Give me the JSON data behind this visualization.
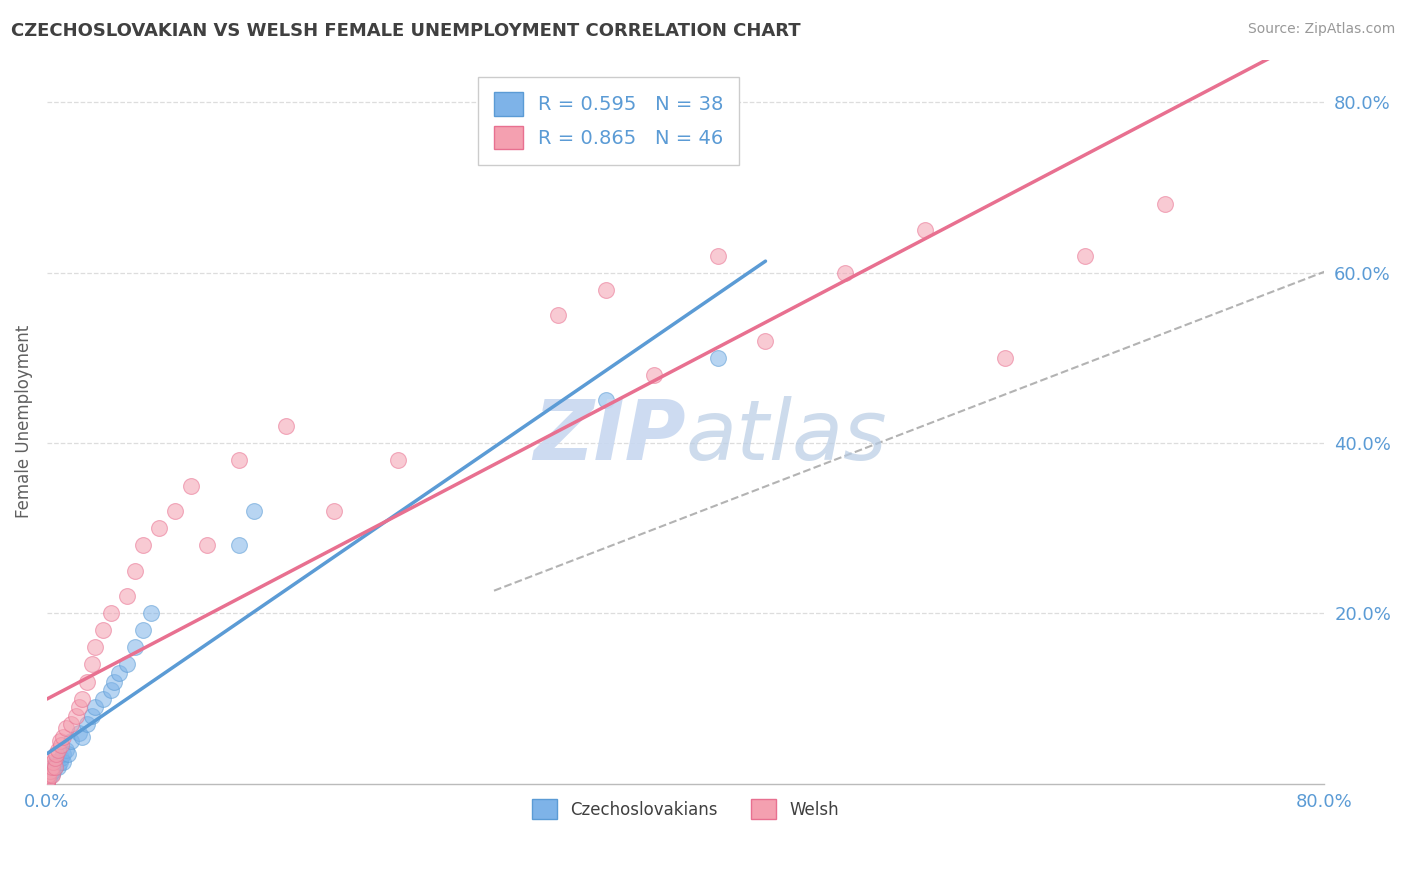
{
  "title": "CZECHOSLOVAKIAN VS WELSH FEMALE UNEMPLOYMENT CORRELATION CHART",
  "source": "Source: ZipAtlas.com",
  "ylabel": "Female Unemployment",
  "legend_label1": "R = 0.595   N = 38",
  "legend_label2": "R = 0.865   N = 46",
  "legend_bottom1": "Czechoslovakians",
  "legend_bottom2": "Welsh",
  "blue_color": "#7EB3E8",
  "pink_color": "#F4A0B0",
  "blue_line_color": "#5B9BD5",
  "pink_line_color": "#E87090",
  "dash_line_color": "#A0A0A0",
  "title_color": "#404040",
  "axis_label_color": "#5B9BD5",
  "watermark_color": "#C8D8F0",
  "czecho_x": [
    0.0,
    0.0,
    0.001,
    0.001,
    0.002,
    0.002,
    0.003,
    0.003,
    0.004,
    0.004,
    0.005,
    0.005,
    0.006,
    0.007,
    0.008,
    0.009,
    0.01,
    0.01,
    0.012,
    0.013,
    0.015,
    0.02,
    0.022,
    0.025,
    0.028,
    0.03,
    0.035,
    0.04,
    0.042,
    0.045,
    0.05,
    0.055,
    0.06,
    0.065,
    0.12,
    0.13,
    0.35,
    0.42
  ],
  "czecho_y": [
    0.0,
    0.0,
    0.005,
    0.008,
    0.01,
    0.01,
    0.012,
    0.015,
    0.018,
    0.015,
    0.02,
    0.022,
    0.025,
    0.02,
    0.025,
    0.03,
    0.035,
    0.025,
    0.04,
    0.035,
    0.05,
    0.06,
    0.055,
    0.07,
    0.08,
    0.09,
    0.1,
    0.11,
    0.12,
    0.13,
    0.14,
    0.16,
    0.18,
    0.2,
    0.28,
    0.32,
    0.45,
    0.5
  ],
  "welsh_x": [
    0.0,
    0.0,
    0.001,
    0.001,
    0.002,
    0.003,
    0.003,
    0.004,
    0.005,
    0.005,
    0.006,
    0.007,
    0.008,
    0.009,
    0.01,
    0.012,
    0.015,
    0.018,
    0.02,
    0.022,
    0.025,
    0.028,
    0.03,
    0.035,
    0.04,
    0.05,
    0.055,
    0.06,
    0.07,
    0.08,
    0.09,
    0.1,
    0.12,
    0.15,
    0.18,
    0.22,
    0.32,
    0.35,
    0.38,
    0.42,
    0.45,
    0.5,
    0.55,
    0.6,
    0.65,
    0.7
  ],
  "welsh_y": [
    0.0,
    0.0,
    0.005,
    0.01,
    0.015,
    0.01,
    0.02,
    0.025,
    0.02,
    0.03,
    0.035,
    0.04,
    0.05,
    0.045,
    0.055,
    0.065,
    0.07,
    0.08,
    0.09,
    0.1,
    0.12,
    0.14,
    0.16,
    0.18,
    0.2,
    0.22,
    0.25,
    0.28,
    0.3,
    0.32,
    0.35,
    0.28,
    0.38,
    0.42,
    0.32,
    0.38,
    0.55,
    0.58,
    0.48,
    0.62,
    0.52,
    0.6,
    0.65,
    0.5,
    0.62,
    0.68
  ],
  "xlim": [
    0.0,
    0.8
  ],
  "ylim": [
    0.0,
    0.85
  ],
  "yticks": [
    0.2,
    0.4,
    0.6,
    0.8
  ],
  "ytick_labels": [
    "20.0%",
    "40.0%",
    "60.0%",
    "80.0%"
  ],
  "xtick_labels": [
    "0.0%",
    "80.0%"
  ],
  "grid_color": "#DDDDDD",
  "scatter_alpha": 0.55,
  "marker_size": 130
}
